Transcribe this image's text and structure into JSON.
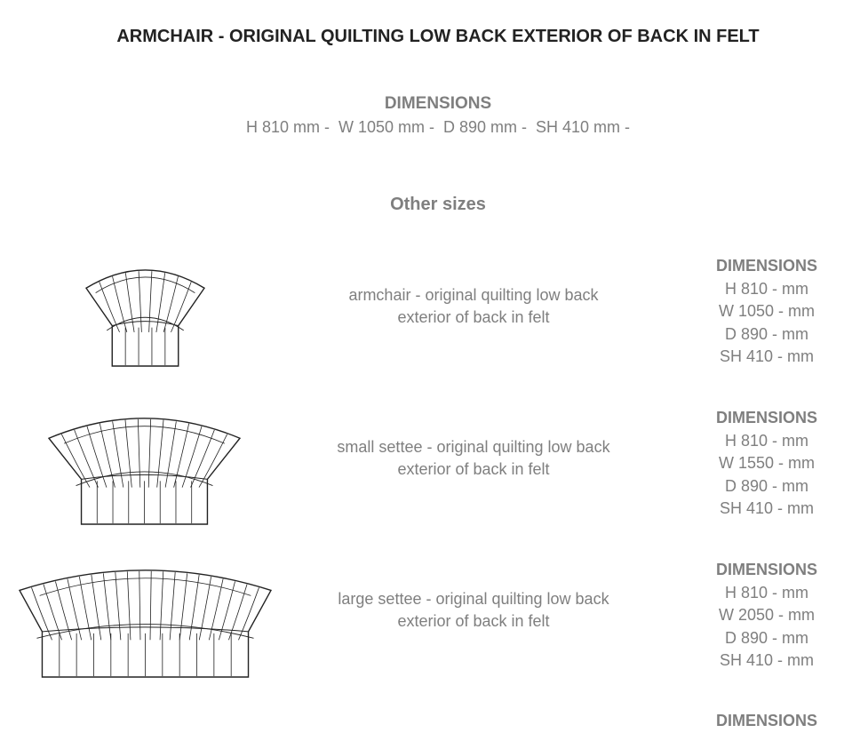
{
  "title": "ARMCHAIR - ORIGINAL QUILTING LOW BACK EXTERIOR OF BACK IN FELT",
  "dimensions": {
    "heading": "DIMENSIONS",
    "values": "H 810 mm -  W 1050 mm -  D 890 mm -  SH 410 mm -"
  },
  "other_sizes_heading": "Other sizes",
  "items": [
    {
      "line1": "armchair - original quilting low back",
      "line2": "exterior of back in felt",
      "dim_heading": "DIMENSIONS",
      "h": "H 810 - mm",
      "w": "W 1050 - mm",
      "d": "D 890 - mm",
      "sh": "SH 410 - mm",
      "icon": "armchair-drawing"
    },
    {
      "line1": "small settee - original quilting low back",
      "line2": "exterior of back in felt",
      "dim_heading": "DIMENSIONS",
      "h": "H 810 - mm",
      "w": "W 1550 - mm",
      "d": "D 890 - mm",
      "sh": "SH 410 - mm",
      "icon": "small-settee-drawing"
    },
    {
      "line1": "large settee - original quilting low back",
      "line2": "exterior of back in felt",
      "dim_heading": "DIMENSIONS",
      "h": "H 810 - mm",
      "w": "W 2050 - mm",
      "d": "D 890 - mm",
      "sh": "SH 410 - mm",
      "icon": "large-settee-drawing"
    }
  ],
  "cut_off_heading": "DIMENSIONS"
}
